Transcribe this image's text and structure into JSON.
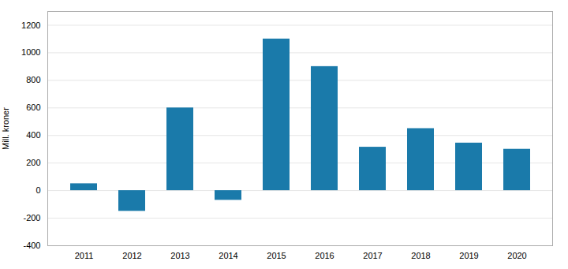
{
  "chart_data": {
    "type": "bar",
    "categories": [
      "2011",
      "2012",
      "2013",
      "2014",
      "2015",
      "2016",
      "2017",
      "2018",
      "2019",
      "2020"
    ],
    "values": [
      50,
      -150,
      600,
      -70,
      1100,
      900,
      315,
      450,
      345,
      300
    ],
    "color": "#1a7aaa",
    "ylabel": "Mill. kroner",
    "ylim": [
      -400,
      1300
    ],
    "yticks": [
      -400,
      -200,
      0,
      200,
      400,
      600,
      800,
      1000,
      1200
    ],
    "grid": true
  }
}
